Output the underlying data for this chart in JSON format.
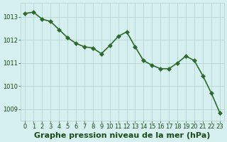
{
  "x": [
    0,
    1,
    2,
    3,
    4,
    5,
    6,
    7,
    8,
    9,
    10,
    11,
    12,
    13,
    14,
    15,
    16,
    17,
    18,
    19,
    20,
    21,
    22,
    23
  ],
  "y": [
    1013.15,
    1013.2,
    1012.9,
    1012.8,
    1012.45,
    1012.1,
    1011.85,
    1011.7,
    1011.65,
    1011.4,
    1011.75,
    1012.15,
    1012.35,
    1011.7,
    1011.1,
    1010.9,
    1010.75,
    1010.75,
    1011.0,
    1011.3,
    1011.1,
    1010.45,
    1009.7,
    1008.85
  ],
  "line_color": "#2d6a2d",
  "marker": "D",
  "marker_size": 3,
  "line_width": 1.2,
  "bg_color": "#d6f0ef",
  "grid_color": "#b0d0d0",
  "xlabel": "Graphe pression niveau de la mer (hPa)",
  "xlabel_fontsize": 8,
  "xlabel_color": "#1a4a1a",
  "xlabel_bold": true,
  "yticks": [
    1009,
    1010,
    1011,
    1012,
    1013
  ],
  "xticks": [
    0,
    1,
    2,
    3,
    4,
    5,
    6,
    7,
    8,
    9,
    10,
    11,
    12,
    13,
    14,
    15,
    16,
    17,
    18,
    19,
    20,
    21,
    22,
    23
  ],
  "ylim": [
    1008.5,
    1013.6
  ],
  "xlim": [
    -0.5,
    23.5
  ],
  "tick_fontsize": 6,
  "tick_color": "#1a4a1a"
}
